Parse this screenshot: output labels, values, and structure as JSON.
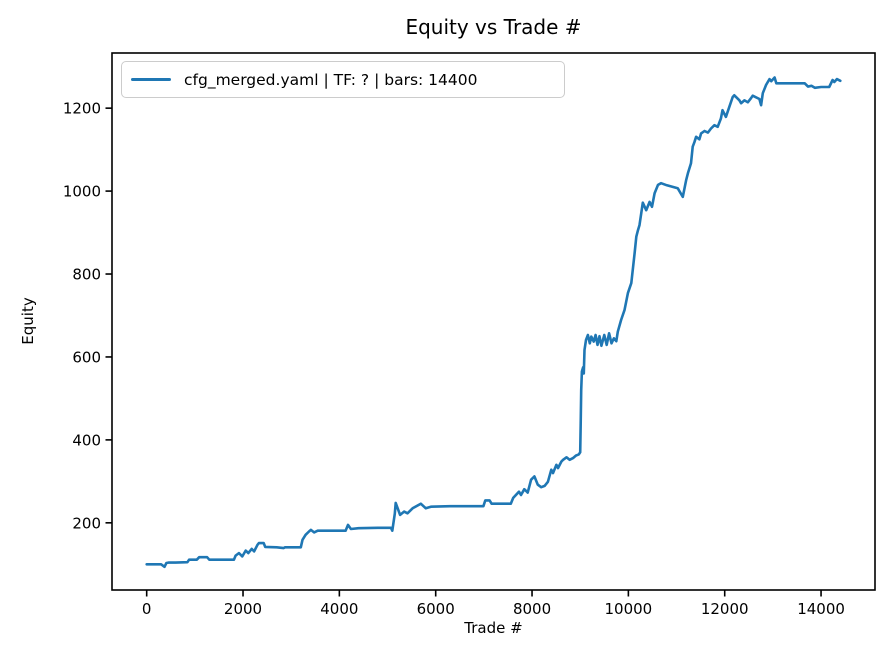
{
  "chart_data": {
    "type": "line",
    "title": "Equity vs Trade #",
    "xlabel": "Trade #",
    "ylabel": "Equity",
    "legend": {
      "position": "upper left",
      "entries": [
        "cfg_merged.yaml | TF: ? | bars: 14400"
      ]
    },
    "line_color": "#1f77b4",
    "axis_color": "#000000",
    "grid": false,
    "xlim": [
      -720,
      15120
    ],
    "ylim": [
      38,
      1333
    ],
    "xticks": [
      0,
      2000,
      4000,
      6000,
      8000,
      10000,
      12000,
      14000
    ],
    "yticks": [
      200,
      400,
      600,
      800,
      1000,
      1200
    ],
    "series": [
      {
        "name": "cfg_merged.yaml | TF: ? | bars: 14400",
        "x": [
          0,
          150,
          300,
          370,
          410,
          450,
          600,
          845,
          880,
          1040,
          1090,
          1255,
          1300,
          1600,
          1810,
          1845,
          1915,
          1985,
          2055,
          2110,
          2180,
          2230,
          2300,
          2330,
          2430,
          2460,
          2700,
          2845,
          2870,
          3200,
          3235,
          3300,
          3370,
          3410,
          3475,
          3550,
          3900,
          4130,
          4180,
          4240,
          4400,
          4800,
          5070,
          5100,
          5150,
          5170,
          5260,
          5345,
          5415,
          5520,
          5690,
          5795,
          5900,
          6300,
          6700,
          6990,
          7030,
          7120,
          7160,
          7400,
          7560,
          7610,
          7730,
          7770,
          7840,
          7910,
          7980,
          8050,
          8120,
          8190,
          8260,
          8330,
          8400,
          8435,
          8505,
          8540,
          8610,
          8645,
          8715,
          8780,
          8850,
          8910,
          8970,
          9000,
          9010,
          9020,
          9035,
          9060,
          9075,
          9090,
          9120,
          9160,
          9200,
          9230,
          9280,
          9320,
          9360,
          9400,
          9440,
          9500,
          9550,
          9600,
          9650,
          9700,
          9750,
          9780,
          9850,
          9920,
          9990,
          10060,
          10130,
          10165,
          10200,
          10230,
          10300,
          10370,
          10440,
          10490,
          10545,
          10615,
          10680,
          10800,
          11025,
          11130,
          11200,
          11235,
          11300,
          11335,
          11370,
          11405,
          11475,
          11510,
          11580,
          11650,
          11715,
          11785,
          11855,
          11920,
          11955,
          12025,
          12095,
          12165,
          12200,
          12305,
          12340,
          12410,
          12480,
          12545,
          12580,
          12720,
          12755,
          12790,
          12860,
          12930,
          12965,
          13035,
          13070,
          13300,
          13660,
          13730,
          13800,
          13870,
          14000,
          14170,
          14240,
          14275,
          14330,
          14400
        ],
        "y": [
          100,
          100,
          100,
          94,
          103,
          104,
          104,
          105,
          111,
          111,
          117,
          117,
          111,
          111,
          111,
          121,
          127,
          119,
          133,
          127,
          137,
          131,
          147,
          151,
          151,
          142,
          141,
          139,
          141,
          141,
          159,
          171,
          179,
          183,
          177,
          181,
          181,
          181,
          195,
          185,
          187,
          188,
          188,
          181,
          222,
          248,
          219,
          227,
          223,
          235,
          246,
          235,
          239,
          240,
          240,
          240,
          254,
          254,
          246,
          246,
          246,
          260,
          275,
          267,
          281,
          273,
          304,
          312,
          292,
          286,
          289,
          299,
          328,
          320,
          340,
          332,
          348,
          352,
          358,
          352,
          356,
          362,
          365,
          370,
          440,
          520,
          565,
          575,
          560,
          617,
          641,
          653,
          633,
          649,
          637,
          653,
          629,
          650,
          627,
          653,
          629,
          657,
          633,
          645,
          638,
          661,
          689,
          713,
          754,
          778,
          850,
          890,
          906,
          918,
          972,
          954,
          974,
          962,
          995,
          1015,
          1019,
          1014,
          1007,
          986,
          1027,
          1043,
          1067,
          1107,
          1118,
          1131,
          1125,
          1139,
          1145,
          1141,
          1151,
          1159,
          1155,
          1175,
          1195,
          1179,
          1203,
          1227,
          1231,
          1219,
          1212,
          1219,
          1214,
          1224,
          1230,
          1222,
          1207,
          1236,
          1256,
          1270,
          1265,
          1274,
          1260,
          1260,
          1260,
          1252,
          1254,
          1249,
          1251,
          1251,
          1268,
          1263,
          1270,
          1266
        ]
      }
    ]
  }
}
